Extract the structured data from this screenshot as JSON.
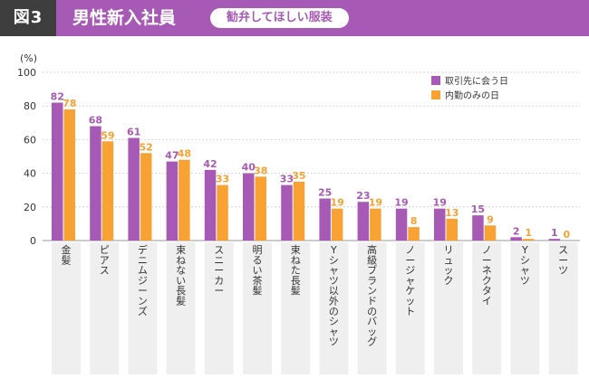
{
  "header": {
    "badge": "図3",
    "title": "男性新入社員",
    "subtitle": "勧弁してほしい服装"
  },
  "chart_data": {
    "type": "bar",
    "unit_label": "(%)",
    "categories": [
      "金髪",
      "ピアス",
      "デニムジーンズ",
      "束ねない長髪",
      "スニーカー",
      "明るい茶髪",
      "束ねた長髪",
      "Yシャツ以外のシャツ",
      "高級ブランドのバッグ",
      "ノージャケット",
      "リュック",
      "ノーネクタイ",
      "Yシャツ",
      "スーツ"
    ],
    "series": [
      {
        "name": "取引先に会う日",
        "color": "#a75ab5",
        "values": [
          82,
          68,
          61,
          47,
          42,
          40,
          33,
          25,
          23,
          19,
          19,
          15,
          2,
          1
        ]
      },
      {
        "name": "内勤のみの日",
        "color": "#f7a232",
        "values": [
          78,
          59,
          52,
          48,
          33,
          38,
          35,
          19,
          19,
          8,
          13,
          9,
          1,
          0
        ]
      }
    ],
    "ylim": [
      0,
      100
    ],
    "yticks": [
      0,
      20,
      40,
      60,
      80,
      100
    ],
    "grid": true,
    "legend_position": "top-right"
  }
}
